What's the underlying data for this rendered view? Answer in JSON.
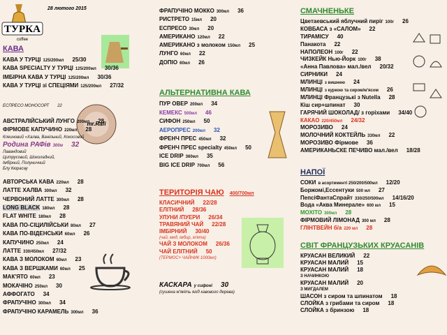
{
  "logo": {
    "name": "ТУРКА",
    "sub": "coffee"
  },
  "date": "28 лютого 2015",
  "blocks": [
    {
      "heading": "КАВА",
      "heading_color": "#6a2c8a",
      "items": [
        {
          "name": "КАВА У ТУРЦІ",
          "size": "125/200мл",
          "price": "25/30"
        },
        {
          "name": "КАВА SPECIALTY У ТУРЦІ",
          "size": "125/200мл",
          "price": "30/36"
        },
        {
          "name": "ІМБІРНА КАВА У ТУРЦІ",
          "size": "125/200мл",
          "price": "30/36"
        },
        {
          "name": "КАВА У ТУРЦІ зі СПЕЦІЯМИ",
          "size": "125/200мл",
          "price": "27/32"
        }
      ]
    },
    {
      "items": [
        {
          "name": "ЕСПРЕСО МОНОСОРТ",
          "price": "22",
          "style": "note"
        }
      ]
    },
    {
      "items": [
        {
          "name": "АВСТРАЛІЙСЬКИЙ ЛУНГО",
          "size": "200мл",
          "price": "28"
        },
        {
          "name": "ФІРМОВЕ КАПУЧИНО",
          "size": "220мл",
          "price": "28"
        },
        {
          "name": "Клеиновий «Халва, Ванільний, Кокосовий",
          "style": "note"
        },
        {
          "name": "Родина РАФів",
          "size": "300м",
          "price": "32",
          "style": "big",
          "color": "#8a3a8a"
        },
        {
          "name": "Лавандовий",
          "style": "note"
        },
        {
          "name": "Цитрусовий, Шоколадний,",
          "style": "note"
        },
        {
          "name": "Імбірний, Полуничний",
          "style": "note"
        },
        {
          "name": "Блу Кюрасау",
          "style": "note"
        }
      ]
    },
    {
      "items": [
        {
          "name": "АВТОРСЬКА КАВА",
          "size": "220мл",
          "price": "28"
        },
        {
          "name": "ЛАТТЕ ХАЛВА",
          "size": "300мл",
          "price": "32"
        },
        {
          "name": "ЧЕРВОНИЙ ЛАТТЕ",
          "size": "300мл",
          "price": "28"
        },
        {
          "name": "LONG BLACK",
          "size": "180мл",
          "price": "28",
          "style": "highlight"
        },
        {
          "name": "FLAT WHITE",
          "size": "180мл",
          "price": "28"
        },
        {
          "name": "КАВА ПО-СІЦИЛІЙСЬКИ",
          "size": "80мл",
          "price": "27"
        },
        {
          "name": "КАВА ПО-ВІДЕНСЬКИ",
          "size": "60мл",
          "price": "26"
        },
        {
          "name": "КАПУЧИНО",
          "size": "250мл",
          "price": "24"
        },
        {
          "name": "ЛАТТЕ",
          "size": "330/450мл",
          "price": "27/32"
        },
        {
          "name": "КАВА З МОЛОКОМ",
          "size": "60мл",
          "price": "23"
        },
        {
          "name": "КАВА З ВЕРШКАМИ",
          "size": "60мл",
          "price": "25"
        },
        {
          "name": "МАК'ЯТО",
          "size": "60мл",
          "price": "23"
        },
        {
          "name": "МОКАЧІНО",
          "size": "250мл",
          "price": "30"
        },
        {
          "name": "АФФОГАТО",
          "price": "34"
        },
        {
          "name": "ФРАПУЧІНО",
          "size": "300мл",
          "price": "34"
        },
        {
          "name": "ФРАПУЧІНО КАРАМЕЛЬ",
          "size": "300мл",
          "price": "36"
        }
      ]
    },
    {
      "items": [
        {
          "name": "ФРАПУЧІНО МОККО",
          "size": "300мл",
          "price": "36"
        },
        {
          "name": "РИСТРЕТО",
          "size": "15мл",
          "price": "20"
        },
        {
          "name": "ЕСПРЕСО",
          "size": "30мл",
          "price": "20"
        },
        {
          "name": "АМЕРИКАНО",
          "size": "120мл",
          "price": "22"
        },
        {
          "name": "АМЕРИКАНО з молоком",
          "size": "150мл",
          "price": "25"
        },
        {
          "name": "ЛУНГО",
          "size": "60мл",
          "price": "22"
        },
        {
          "name": "ДОПІО",
          "size": "60мл",
          "price": "26"
        }
      ]
    },
    {
      "heading": "АЛЬТЕРНАТИВНА КАВА",
      "heading_color": "#2e8b2e",
      "items": [
        {
          "name": "ПУР ОВЕР",
          "size": "200мл",
          "price": "34"
        },
        {
          "name": "КЕМЕКС",
          "size": "500мл",
          "price": "46",
          "color": "#8a3aa8"
        },
        {
          "name": "СИФОН",
          "size": "250мл",
          "price": "50"
        },
        {
          "name": "АЕРОПРЕС",
          "size": "200мл",
          "price": "32",
          "color": "#2a55b0"
        },
        {
          "name": "ФРЕНЧ ПРЕС",
          "size": "450мл",
          "price": "32"
        },
        {
          "name": "ФРЕНЧ ПРЕС specialty",
          "size": "450мл",
          "price": "50"
        },
        {
          "name": "ICE DRIP",
          "size": "360мл",
          "price": "35"
        },
        {
          "name": "BIG ICE DRIP",
          "size": "700мл",
          "price": "56"
        }
      ]
    },
    {
      "heading": "ТЕРИТОРІЯ ЧАЮ",
      "heading_note": "400/700мл",
      "heading_color": "#d8321e",
      "items": [
        {
          "name": "КЛАСИЧНИЙ",
          "price": "22/28",
          "color": "#d8321e"
        },
        {
          "name": "ЕЛІТНИЙ",
          "price": "28/36",
          "color": "#d8321e"
        },
        {
          "name": "УЛУНИ /ПУЕРИ",
          "price": "26/34",
          "color": "#d8321e"
        },
        {
          "name": "ТРАВЯНИЙ ЧАЙ",
          "price": "22/28",
          "color": "#d8321e"
        },
        {
          "name": "ІМБІРНИЙ",
          "price": "30/40",
          "color": "#d8321e"
        },
        {
          "name": "(чай, мед, імбир, м'ята)",
          "style": "note",
          "color": "#d8321e"
        },
        {
          "name": "ЧАЙ З МОЛОКОМ",
          "price": "26/36",
          "color": "#d8321e"
        },
        {
          "name": "ЧАЙ ЕЛІТНИЙ",
          "price": "50",
          "color": "#d8321e"
        },
        {
          "name": "(ТЕРМОС+ ЧАЙНИК 1000мл)",
          "style": "note",
          "color": "#d8321e"
        }
      ]
    },
    {
      "items": [
        {
          "name": "КАСКАРА",
          "size": "у сифоні",
          "price": "30",
          "style": "big"
        },
        {
          "name": "(сушена м'якіть ягід кавового дерева)",
          "style": "note"
        }
      ]
    },
    {
      "heading": "СМАЧНЕНЬКЕ",
      "heading_color": "#2e8b2e",
      "items": [
        {
          "name": "Цветаевський яблучний пиріг",
          "size": "100г",
          "price": "26"
        },
        {
          "name": "КОВБАСА з «САЛОМ»",
          "price": "22"
        },
        {
          "name": "ТИРАМІСУ",
          "price": "40"
        },
        {
          "name": "Панакота",
          "price": "22"
        },
        {
          "name": "НАПОЛЕОН",
          "size": "100г",
          "price": "22"
        },
        {
          "name": "ЧИЗКЕЙК Нью-Йорк",
          "size": "100г",
          "price": "38"
        },
        {
          "name": "«Анна Павлова» мал./вел",
          "price": "20/32"
        },
        {
          "name": "СИРНИКИ",
          "price": "24"
        },
        {
          "name": "МЛИНЦІ",
          "size": "з вишнею",
          "price": "24"
        },
        {
          "name": "МЛИНЦІ",
          "size": "з куркою та сиром/м'ясом",
          "price": "26"
        },
        {
          "name": "МЛИНЦІ Французькі з Nutella",
          "price": "28"
        },
        {
          "name": "Кіш сир+шпинат",
          "price": "30"
        },
        {
          "name": "ГАРЯЧИЙ ШОКОЛАД/ з горіхами",
          "price": "34/40"
        },
        {
          "name": "КАКАО",
          "size": "220/450мл",
          "price": "24/32",
          "color": "#d8321e"
        },
        {
          "name": "МОРОЗИВО",
          "price": "24"
        },
        {
          "name": "МОЛОЧНИЙ КОКТЕЙЛЬ",
          "size": "330мл",
          "price": "22"
        },
        {
          "name": "МОРОЗИВО Фірмове",
          "price": "36"
        },
        {
          "name": "АМЕРИКАНЬСКЕ ПЕЧИВО мал./вел",
          "price": "18/28"
        }
      ]
    },
    {
      "heading": "НАПОЇ",
      "heading_color": "#1f2f5a",
      "items": [
        {
          "name": "СОКИ",
          "size": "в асортименті 250/200/500мл",
          "price": "12/20"
        },
        {
          "name": "Боржомі,Ессентуки",
          "size": "500 мл",
          "price": "27"
        },
        {
          "name": "ПепсіФантаСпрайт",
          "size": "330/250/500мл",
          "price": "14/16/20"
        },
        {
          "name": "Вода «Аква Минерале»",
          "size": "600 мл",
          "price": "15"
        },
        {
          "name": "МОХІТО",
          "size": "300мл",
          "price": "28",
          "color": "#2e9b2e"
        },
        {
          "name": "ФІРМОВИЙ ЛІМОНАД",
          "size": "300 мл",
          "price": "28"
        },
        {
          "name": "ГЛІНТВЕЙН б/а",
          "size": "220 мл",
          "price": "28",
          "color": "#d8321e"
        }
      ]
    },
    {
      "heading": "СВІТ ФРАНЦУЗЬКИХ КРУАСАНІВ",
      "heading_color": "#2e8b2e",
      "items": [
        {
          "name": "КРУАСАН ВЕЛИКИЙ",
          "price": "22"
        },
        {
          "name": "КРУАСАН МАЛИЙ",
          "price": "15"
        },
        {
          "name": "КРУАСАН МАЛИЙ",
          "price": "18"
        },
        {
          "name": "З НАЧИНКОЮ",
          "style": "small"
        },
        {
          "name": "КРУАСАН МАЛИЙ",
          "price": "20"
        },
        {
          "name": "З МИГДАЛЕМ",
          "style": "small"
        },
        {
          "name": "ШАСОН з сиром та шпинатом",
          "price": "18"
        },
        {
          "name": "СЛОЙКА з грибами та сиром",
          "price": "18"
        },
        {
          "name": "СЛОЙКА з бринзою",
          "price": "18"
        }
      ]
    }
  ]
}
